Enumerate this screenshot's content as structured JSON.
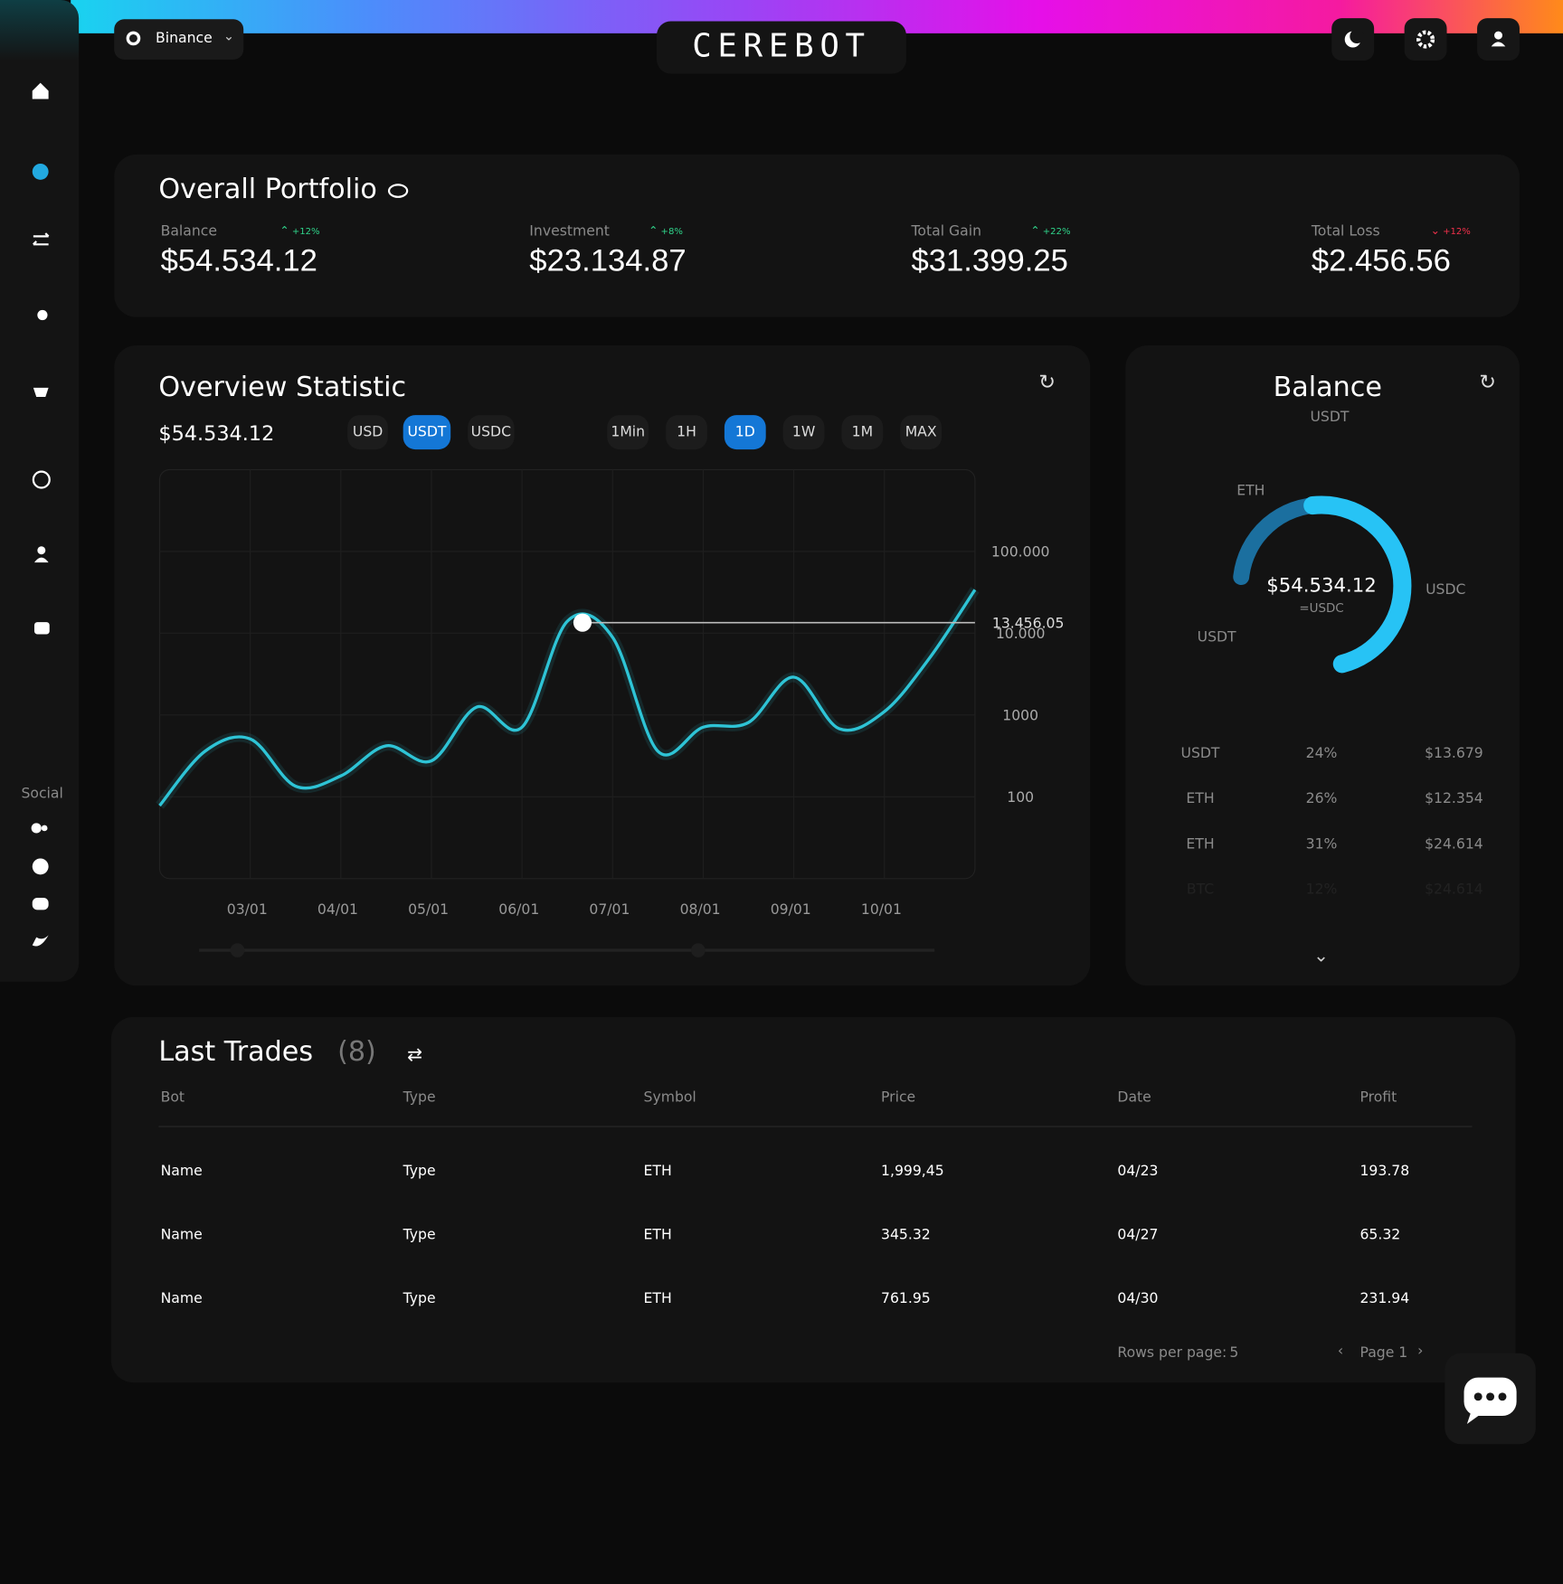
{
  "header": {
    "exchange": "Binance",
    "logo": "CEREBOT"
  },
  "sidebar": {
    "social_label": "Social"
  },
  "portfolio": {
    "title": "Overall Portfolio",
    "stats": [
      {
        "label": "Balance",
        "change": "+12%",
        "value": "$54.534.12",
        "trend": "up"
      },
      {
        "label": "Investment",
        "change": "+8%",
        "value": "$23.134.87",
        "trend": "up"
      },
      {
        "label": "Total Gain",
        "change": "+22%",
        "value": "$31.399.25",
        "trend": "up"
      },
      {
        "label": "Total Loss",
        "change": "+12%",
        "value": "$2.456.56",
        "trend": "down"
      }
    ]
  },
  "overview": {
    "title": "Overview Statistic",
    "amount": "$54.534.12",
    "currencies": [
      "USD",
      "USDT",
      "USDC"
    ],
    "active_currency": 1,
    "ranges": [
      "1Min",
      "1H",
      "1D",
      "1W",
      "1M",
      "MAX"
    ],
    "active_range": 2,
    "chart": {
      "type": "line",
      "log_scale": true,
      "grid": true,
      "color": "#2ec4d6",
      "categories": [
        null,
        null,
        "03/01",
        null,
        "04/01",
        null,
        "05/01",
        null,
        "06/01",
        null,
        "07/01",
        null,
        "08/01",
        null,
        "09/01",
        null,
        "10/01",
        null,
        null
      ],
      "values": [
        78,
        360,
        510,
        135,
        180,
        420,
        275,
        1250,
        710,
        14000,
        8900,
        360,
        710,
        810,
        2900,
        680,
        1100,
        5000,
        34000
      ],
      "ylim": [
        10,
        1000000
      ],
      "yticks": [
        100,
        1000,
        {
          "value": 10000,
          "label": "10.000"
        },
        {
          "value": 100000,
          "label": "100.000"
        }
      ],
      "marker": {
        "value": 13456.05,
        "label": "13.456.05"
      }
    }
  },
  "balance": {
    "title": "Balance",
    "unit": "USDT",
    "center_value": "$54.534.12",
    "center_unit": "=USDC",
    "donut_labels": [
      "ETH",
      "USDC",
      "USDT"
    ],
    "rows": [
      [
        "USDT",
        "24%",
        "$13.679"
      ],
      [
        "ETH",
        "26%",
        "$12.354"
      ],
      [
        "ETH",
        "31%",
        "$24.614"
      ],
      [
        "BTC",
        "12%",
        "$24.614"
      ]
    ]
  },
  "trades": {
    "title": "Last Trades",
    "count": "(8)",
    "columns": [
      "Bot",
      "Type",
      "Symbol",
      "Price",
      "Date",
      "Profit"
    ],
    "rows": [
      [
        "Name",
        "Type",
        "ETH",
        "1,999,45",
        "04/23",
        "193.78"
      ],
      [
        "Name",
        "Type",
        "ETH",
        "345.32",
        "04/27",
        "65.32"
      ],
      [
        "Name",
        "Type",
        "ETH",
        "761.95",
        "04/30",
        "231.94"
      ]
    ],
    "rows_per_page_label": "Rows per page:",
    "rows_per_page": "5",
    "page": "Page 1"
  }
}
